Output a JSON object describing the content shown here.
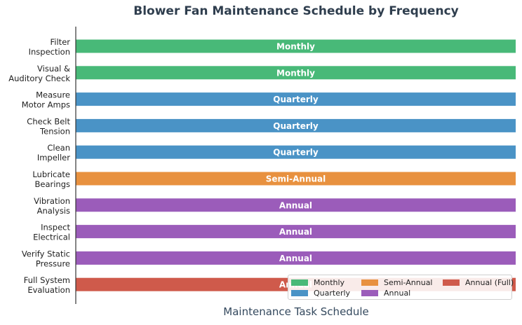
{
  "chart_data": {
    "type": "bar",
    "orientation": "horizontal",
    "title": "Blower Fan Maintenance Schedule by Frequency",
    "xlabel": "Maintenance Task Schedule",
    "ylabel": "",
    "categories": [
      [
        "Filter",
        "Inspection"
      ],
      [
        "Visual &",
        "Auditory Check"
      ],
      [
        "Measure",
        "Motor Amps"
      ],
      [
        "Check Belt",
        "Tension"
      ],
      [
        "Clean",
        "Impeller"
      ],
      [
        "Lubricate",
        "Bearings"
      ],
      [
        "Vibration",
        "Analysis"
      ],
      [
        "Inspect",
        "Electrical"
      ],
      [
        "Verify Static",
        "Pressure"
      ],
      [
        "Full System",
        "Evaluation"
      ]
    ],
    "values": [
      1,
      1,
      1,
      1,
      1,
      1,
      1,
      1,
      1,
      1
    ],
    "bar_labels": [
      "Monthly",
      "Monthly",
      "Quarterly",
      "Quarterly",
      "Quarterly",
      "Semi-Annual",
      "Annual",
      "Annual",
      "Annual",
      "Annual"
    ],
    "series_key": [
      "monthly",
      "monthly",
      "quarterly",
      "quarterly",
      "quarterly",
      "semi",
      "annual",
      "annual",
      "annual",
      "annual_full"
    ],
    "xlim": [
      0,
      1
    ],
    "grid": false,
    "legend": {
      "placement": "lower-right",
      "entries": [
        {
          "key": "monthly",
          "label": "Monthly",
          "color": "#48b978"
        },
        {
          "key": "quarterly",
          "label": "Quarterly",
          "color": "#4a93c6"
        },
        {
          "key": "semi",
          "label": "Semi-Annual",
          "color": "#e8913f"
        },
        {
          "key": "annual",
          "label": "Annual",
          "color": "#9b5cba"
        },
        {
          "key": "annual_full",
          "label": "Annual (Full)",
          "color": "#cf5a4b"
        }
      ]
    }
  }
}
